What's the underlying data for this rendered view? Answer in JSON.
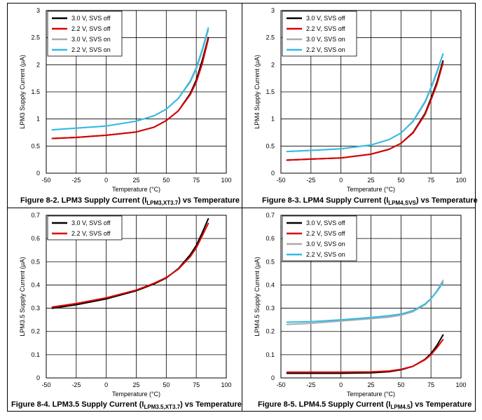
{
  "panels": [
    {
      "id": "fig-8-2",
      "caption": {
        "prefix": "Figure 8-2. LPM3 Supply Current (I",
        "sub": "LPM3,XT3.7",
        "suffix": ") vs Temperature"
      },
      "chart_data": {
        "type": "line",
        "title": "",
        "xlabel": "Temperature (°C)",
        "ylabel": "LPM3 Supply Current (µA)",
        "xlim": [
          -50,
          100
        ],
        "ylim": [
          0,
          3
        ],
        "xticks": [
          -50,
          -25,
          0,
          25,
          50,
          75,
          100
        ],
        "yticks": [
          0,
          0.5,
          1,
          1.5,
          2,
          2.5,
          3
        ],
        "grid": true,
        "legend_position": "top-left",
        "series": [
          {
            "name": "3.0 V, SVS off",
            "color": "#000000",
            "x": [
              -45,
              -25,
              0,
              25,
              40,
              50,
              60,
              70,
              75,
              80,
              85
            ],
            "y": [
              0.64,
              0.66,
              0.7,
              0.76,
              0.85,
              0.97,
              1.15,
              1.47,
              1.72,
              2.08,
              2.5
            ]
          },
          {
            "name": "2.2 V, SVS off",
            "color": "#e00000",
            "x": [
              -45,
              -25,
              0,
              25,
              40,
              50,
              60,
              70,
              75,
              80,
              85
            ],
            "y": [
              0.64,
              0.66,
              0.7,
              0.76,
              0.85,
              0.97,
              1.15,
              1.45,
              1.68,
              2.02,
              2.47
            ]
          },
          {
            "name": "3.0 V, SVS on",
            "color": "#aaaaaa",
            "x": [
              -45,
              -25,
              0,
              25,
              40,
              50,
              60,
              70,
              75,
              80,
              85
            ],
            "y": [
              0.8,
              0.83,
              0.87,
              0.96,
              1.06,
              1.18,
              1.38,
              1.68,
              1.92,
              2.25,
              2.64
            ]
          },
          {
            "name": "2.2 V, SVS on",
            "color": "#33bbe6",
            "x": [
              -45,
              -25,
              0,
              25,
              40,
              50,
              60,
              70,
              75,
              80,
              85
            ],
            "y": [
              0.8,
              0.83,
              0.87,
              0.96,
              1.06,
              1.18,
              1.38,
              1.7,
              1.95,
              2.28,
              2.68
            ]
          }
        ]
      }
    },
    {
      "id": "fig-8-3",
      "caption": {
        "prefix": "Figure 8-3. LPM4 Supply Current (I",
        "sub": "LPM4,SVS",
        "suffix": ") vs Temperature"
      },
      "chart_data": {
        "type": "line",
        "title": "",
        "xlabel": "Temperature (°C)",
        "ylabel": "LPM4 Supply Current (µA)",
        "xlim": [
          -50,
          100
        ],
        "ylim": [
          0,
          3
        ],
        "xticks": [
          -50,
          -25,
          0,
          25,
          50,
          75,
          100
        ],
        "yticks": [
          0,
          0.5,
          1,
          1.5,
          2,
          2.5,
          3
        ],
        "grid": true,
        "legend_position": "top-left",
        "series": [
          {
            "name": "3.0 V, SVS off",
            "color": "#000000",
            "x": [
              -45,
              -25,
              0,
              25,
              40,
              50,
              60,
              70,
              75,
              80,
              85
            ],
            "y": [
              0.24,
              0.26,
              0.28,
              0.35,
              0.44,
              0.55,
              0.75,
              1.1,
              1.38,
              1.68,
              2.07
            ]
          },
          {
            "name": "2.2 V, SVS off",
            "color": "#e00000",
            "x": [
              -45,
              -25,
              0,
              25,
              40,
              50,
              60,
              70,
              75,
              80,
              85
            ],
            "y": [
              0.24,
              0.26,
              0.28,
              0.35,
              0.44,
              0.55,
              0.74,
              1.08,
              1.35,
              1.64,
              2.03
            ]
          },
          {
            "name": "3.0 V, SVS on",
            "color": "#aaaaaa",
            "x": [
              -45,
              -25,
              0,
              25,
              40,
              50,
              60,
              70,
              75,
              80,
              85
            ],
            "y": [
              0.4,
              0.42,
              0.45,
              0.52,
              0.62,
              0.74,
              0.95,
              1.3,
              1.56,
              1.85,
              2.2
            ]
          },
          {
            "name": "2.2 V, SVS on",
            "color": "#33bbe6",
            "x": [
              -45,
              -25,
              0,
              25,
              40,
              50,
              60,
              70,
              75,
              80,
              85
            ],
            "y": [
              0.4,
              0.42,
              0.45,
              0.52,
              0.62,
              0.74,
              0.96,
              1.32,
              1.58,
              1.88,
              2.2
            ]
          }
        ]
      }
    },
    {
      "id": "fig-8-4",
      "caption": {
        "prefix": "Figure 8-4. LPM3.5 Supply Current (I",
        "sub": "LPM3.5,XT3.7",
        "suffix": ") vs Temperature"
      },
      "chart_data": {
        "type": "line",
        "title": "",
        "xlabel": "Temperature (°C)",
        "ylabel": "LPM3.5 Supply Current (µA)",
        "xlim": [
          -50,
          100
        ],
        "ylim": [
          0,
          0.7
        ],
        "xticks": [
          -50,
          -25,
          0,
          25,
          50,
          75,
          100
        ],
        "yticks": [
          0,
          0.1,
          0.2,
          0.3,
          0.4,
          0.5,
          0.6,
          0.7
        ],
        "grid": true,
        "legend_position": "top-left",
        "series": [
          {
            "name": "3.0 V, SVS off",
            "color": "#000000",
            "x": [
              -45,
              -25,
              0,
              25,
              40,
              50,
              60,
              70,
              75,
              80,
              85
            ],
            "y": [
              0.3,
              0.315,
              0.34,
              0.375,
              0.405,
              0.43,
              0.47,
              0.53,
              0.57,
              0.625,
              0.685
            ]
          },
          {
            "name": "2.2 V, SVS off",
            "color": "#e00000",
            "x": [
              -45,
              -25,
              0,
              25,
              40,
              50,
              60,
              70,
              75,
              80,
              85
            ],
            "y": [
              0.305,
              0.32,
              0.345,
              0.378,
              0.408,
              0.432,
              0.468,
              0.522,
              0.56,
              0.612,
              0.665
            ]
          }
        ]
      }
    },
    {
      "id": "fig-8-5",
      "caption": {
        "prefix": "Figure 8-5. LPM4.5 Supply Current (I",
        "sub": "LPM4.5",
        "suffix": ") vs Temperature"
      },
      "chart_data": {
        "type": "line",
        "title": "",
        "xlabel": "Temperature (°C)",
        "ylabel": "LPM4.5 Supply Current (µA)",
        "xlim": [
          -50,
          100
        ],
        "ylim": [
          0,
          0.7
        ],
        "xticks": [
          -50,
          -25,
          0,
          25,
          50,
          75,
          100
        ],
        "yticks": [
          0,
          0.1,
          0.2,
          0.3,
          0.4,
          0.5,
          0.6,
          0.7
        ],
        "grid": true,
        "legend_position": "top-left",
        "series": [
          {
            "name": "3.0 V, SVS off",
            "color": "#000000",
            "x": [
              -45,
              -25,
              0,
              25,
              40,
              50,
              60,
              70,
              75,
              80,
              85
            ],
            "y": [
              0.02,
              0.02,
              0.02,
              0.022,
              0.027,
              0.035,
              0.05,
              0.08,
              0.105,
              0.14,
              0.185
            ]
          },
          {
            "name": "2.2 V, SVS off",
            "color": "#e00000",
            "x": [
              -45,
              -25,
              0,
              25,
              40,
              50,
              60,
              70,
              75,
              80,
              85
            ],
            "y": [
              0.025,
              0.025,
              0.025,
              0.026,
              0.03,
              0.037,
              0.05,
              0.078,
              0.1,
              0.13,
              0.165
            ]
          },
          {
            "name": "3.0 V, SVS on",
            "color": "#aaaaaa",
            "x": [
              -45,
              -25,
              0,
              25,
              40,
              50,
              60,
              70,
              75,
              80,
              85
            ],
            "y": [
              0.23,
              0.235,
              0.245,
              0.255,
              0.262,
              0.27,
              0.285,
              0.315,
              0.34,
              0.375,
              0.42
            ]
          },
          {
            "name": "2.2 V, SVS on",
            "color": "#33bbe6",
            "x": [
              -45,
              -25,
              0,
              25,
              40,
              50,
              60,
              70,
              75,
              80,
              85
            ],
            "y": [
              0.24,
              0.242,
              0.25,
              0.26,
              0.268,
              0.275,
              0.29,
              0.318,
              0.342,
              0.372,
              0.41
            ]
          }
        ]
      }
    }
  ]
}
